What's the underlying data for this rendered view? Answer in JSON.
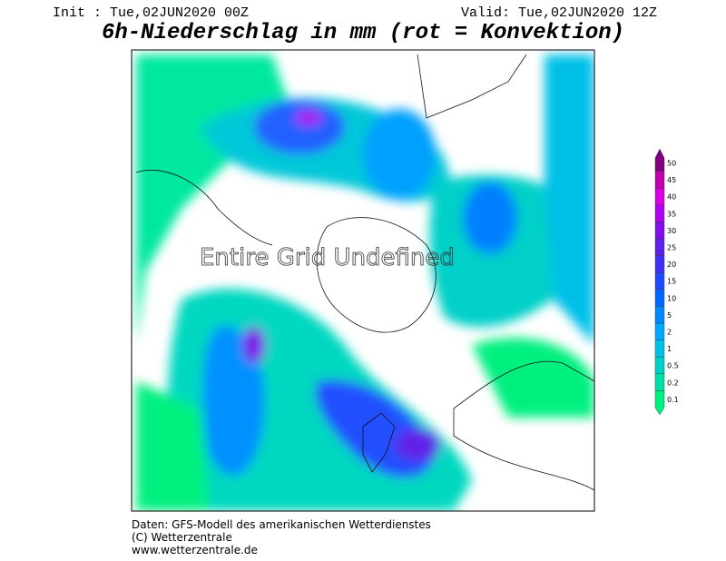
{
  "header": {
    "init": "Init : Tue,02JUN2020 00Z",
    "valid": "Valid: Tue,02JUN2020 12Z",
    "title": "6h-Niederschlag in mm (rot = Konvektion)"
  },
  "map": {
    "overlay": "Entire Grid Undefined"
  },
  "legend": {
    "items": [
      {
        "label": "0.1",
        "color": "#00f080"
      },
      {
        "label": "0.2",
        "color": "#00e0a8"
      },
      {
        "label": "0.5",
        "color": "#00d0c8"
      },
      {
        "label": "1",
        "color": "#00c0e8"
      },
      {
        "label": "2",
        "color": "#00a8ff"
      },
      {
        "label": "5",
        "color": "#0088ff"
      },
      {
        "label": "10",
        "color": "#0068ff"
      },
      {
        "label": "15",
        "color": "#2048ff"
      },
      {
        "label": "20",
        "color": "#4030f0"
      },
      {
        "label": "25",
        "color": "#6020e8"
      },
      {
        "label": "30",
        "color": "#8010e8"
      },
      {
        "label": "35",
        "color": "#b000f0"
      },
      {
        "label": "40",
        "color": "#d800e0"
      },
      {
        "label": "45",
        "color": "#c000b0"
      },
      {
        "label": "50",
        "color": "#800080"
      }
    ]
  },
  "footer": {
    "lines": [
      "Daten: GFS-Modell des amerikanischen Wetterdienstes",
      "(C) Wetterzentrale",
      "www.wetterzentrale.de"
    ]
  }
}
